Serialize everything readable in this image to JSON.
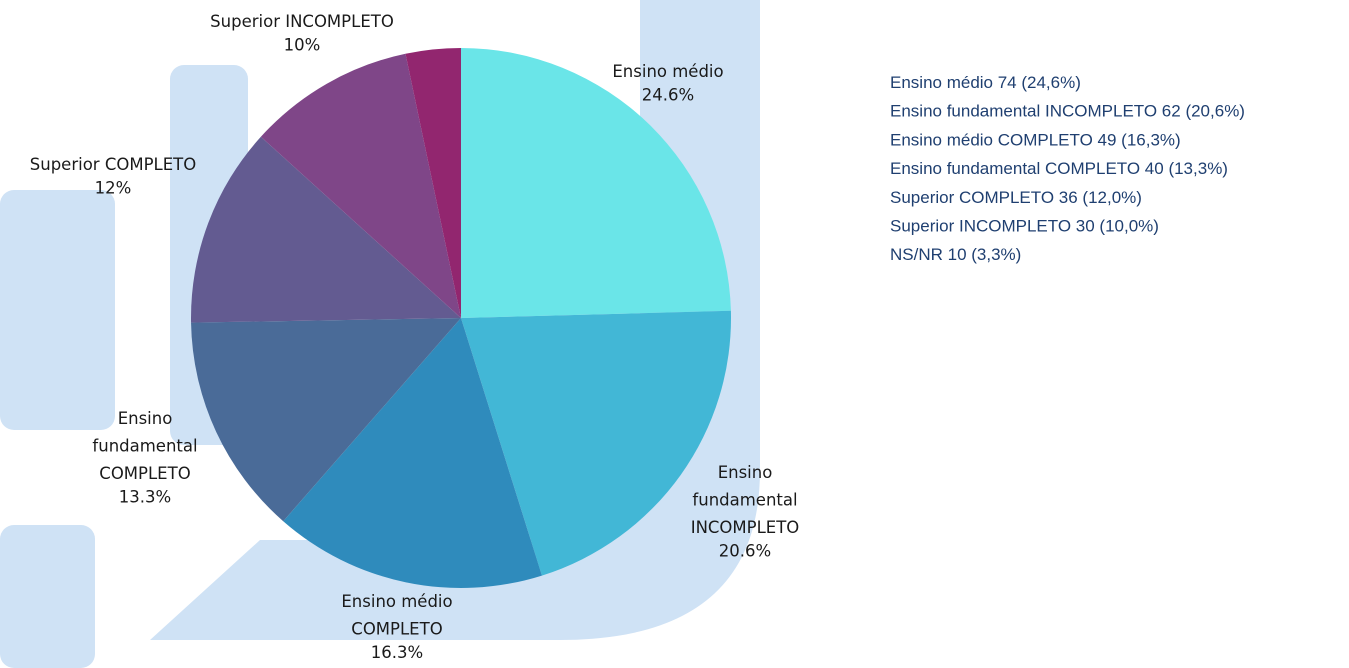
{
  "chart_data": {
    "type": "pie",
    "categories": [
      "Ensino médio",
      "Ensino fundamental INCOMPLETO",
      "Ensino médio COMPLETO",
      "Ensino fundamental COMPLETO",
      "Superior COMPLETO",
      "Superior INCOMPLETO",
      null
    ],
    "values": [
      24.6,
      20.6,
      16.3,
      13.3,
      12,
      10,
      3.3
    ],
    "value_labels": [
      "24.6%",
      "20.6%",
      "16.3%",
      "13.3%",
      "12%",
      "10%",
      null
    ],
    "colors": [
      "#6ae5e8",
      "#42b7d6",
      "#2f8bbc",
      "#4a6b98",
      "#635b91",
      "#7f4688",
      "#92266f"
    ],
    "legend": [
      "Ensino médio 74 (24,6%)",
      "Ensino fundamental INCOMPLETO 62 (20,6%)",
      "Ensino médio COMPLETO 49 (16,3%)",
      "Ensino fundamental COMPLETO 40 (13,3%)",
      "Superior COMPLETO 36 (12,0%)",
      "Superior INCOMPLETO 30 (10,0%)",
      "NS/NR  10 (3,3%)"
    ],
    "legend_position": "right"
  }
}
